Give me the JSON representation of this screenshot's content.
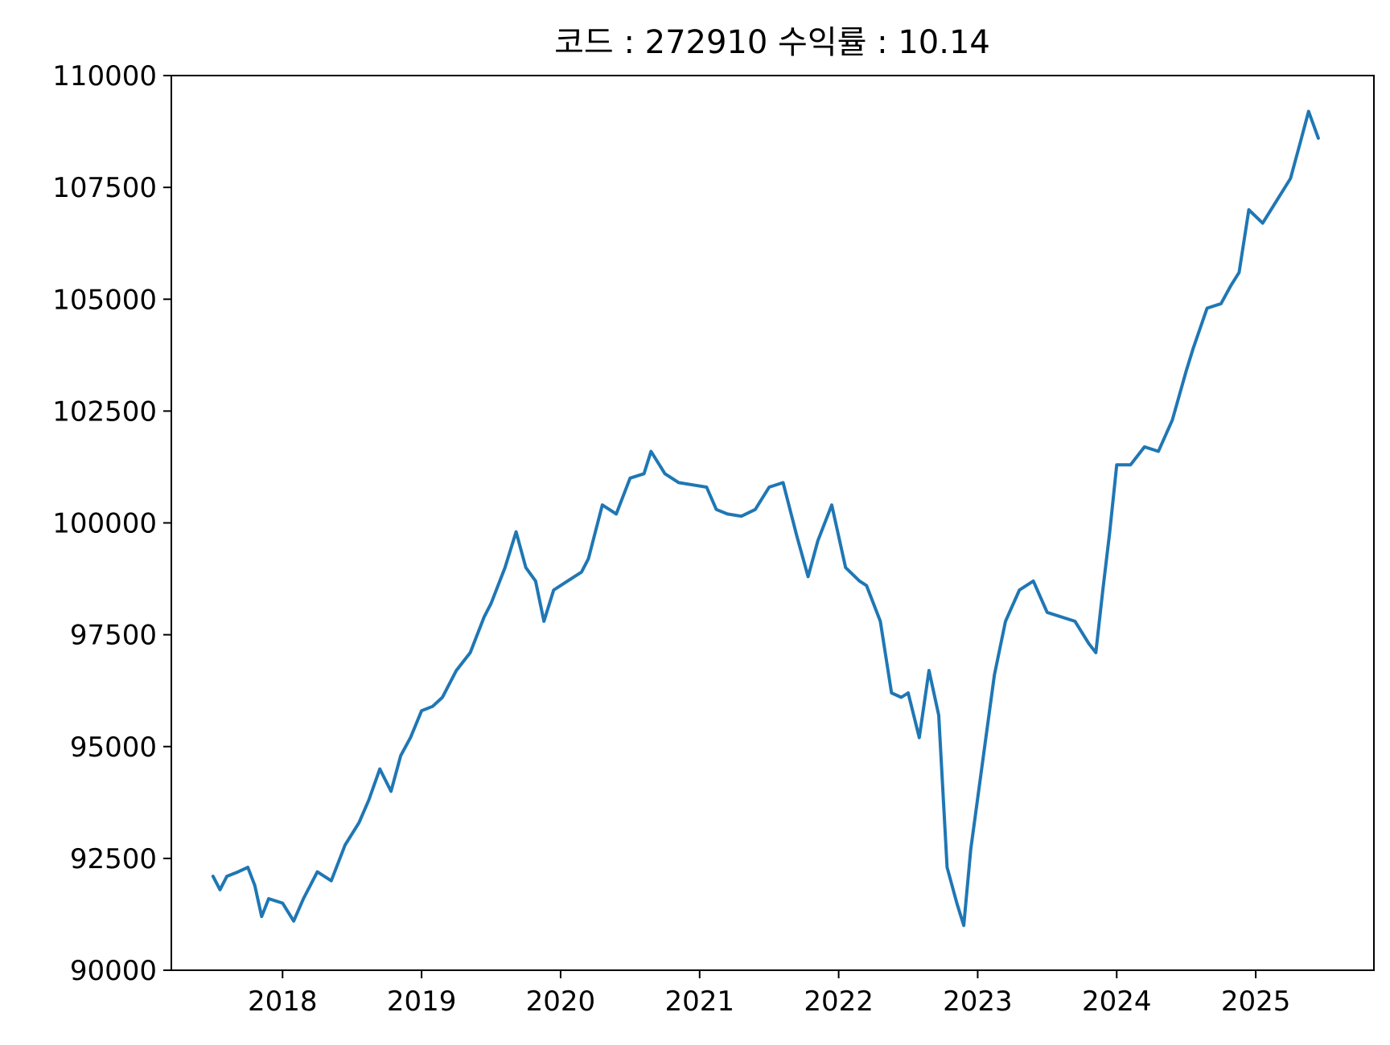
{
  "chart_data": {
    "type": "line",
    "title": "코드 : 272910 수익률 : 10.14",
    "xlabel": "",
    "ylabel": "",
    "xlim": [
      2017.2,
      2025.85
    ],
    "ylim": [
      90000,
      110000
    ],
    "x_ticks": [
      2018,
      2019,
      2020,
      2021,
      2022,
      2023,
      2024,
      2025
    ],
    "x_tick_labels": [
      "2018",
      "2019",
      "2020",
      "2021",
      "2022",
      "2023",
      "2024",
      "2025"
    ],
    "y_ticks": [
      90000,
      92500,
      95000,
      97500,
      100000,
      102500,
      105000,
      107500,
      110000
    ],
    "y_tick_labels": [
      "90000",
      "92500",
      "95000",
      "97500",
      "100000",
      "102500",
      "105000",
      "107500",
      "110000"
    ],
    "grid": false,
    "color": "#1f77b4",
    "series": [
      {
        "x": [
          2017.5,
          2017.55,
          2017.6,
          2017.68,
          2017.75,
          2017.8,
          2017.85,
          2017.9,
          2018.0,
          2018.08,
          2018.15,
          2018.25,
          2018.35,
          2018.45,
          2018.55,
          2018.62,
          2018.7,
          2018.78,
          2018.85,
          2018.92,
          2019.0,
          2019.08,
          2019.15,
          2019.25,
          2019.35,
          2019.45,
          2019.5,
          2019.6,
          2019.68,
          2019.75,
          2019.82,
          2019.88,
          2019.95,
          2020.05,
          2020.15,
          2020.2,
          2020.3,
          2020.4,
          2020.5,
          2020.6,
          2020.65,
          2020.75,
          2020.85,
          2020.95,
          2021.05,
          2021.12,
          2021.2,
          2021.3,
          2021.4,
          2021.5,
          2021.6,
          2021.7,
          2021.78,
          2021.85,
          2021.95,
          2022.05,
          2022.15,
          2022.2,
          2022.3,
          2022.38,
          2022.45,
          2022.5,
          2022.58,
          2022.65,
          2022.72,
          2022.78,
          2022.85,
          2022.9,
          2022.95,
          2023.05,
          2023.12,
          2023.2,
          2023.3,
          2023.4,
          2023.5,
          2023.6,
          2023.7,
          2023.8,
          2023.85,
          2023.9,
          2023.95,
          2024.0,
          2024.1,
          2024.2,
          2024.3,
          2024.4,
          2024.5,
          2024.55,
          2024.65,
          2024.75,
          2024.82,
          2024.88,
          2024.95,
          2025.05,
          2025.15,
          2025.25,
          2025.32,
          2025.38,
          2025.45
        ],
        "y": [
          92100,
          91800,
          92100,
          92200,
          92300,
          91900,
          91200,
          91600,
          91500,
          91100,
          91600,
          92200,
          92000,
          92800,
          93300,
          93800,
          94500,
          94000,
          94800,
          95200,
          95800,
          95900,
          96100,
          96700,
          97100,
          97900,
          98200,
          99000,
          99800,
          99000,
          98700,
          97800,
          98500,
          98700,
          98900,
          99200,
          100400,
          100200,
          101000,
          101100,
          101600,
          101100,
          100900,
          100850,
          100800,
          100300,
          100200,
          100150,
          100300,
          100800,
          100900,
          99700,
          98800,
          99600,
          100400,
          99000,
          98700,
          98600,
          97800,
          96200,
          96100,
          96200,
          95200,
          96700,
          95700,
          92300,
          91500,
          91000,
          92700,
          95000,
          96600,
          97800,
          98500,
          98700,
          98000,
          97900,
          97800,
          97300,
          97100,
          98500,
          99800,
          101300,
          101300,
          101700,
          101600,
          102300,
          103400,
          103900,
          104800,
          104900,
          105300,
          105600,
          107000,
          106700,
          107200,
          107700,
          108500,
          109200,
          108600
        ]
      }
    ]
  }
}
